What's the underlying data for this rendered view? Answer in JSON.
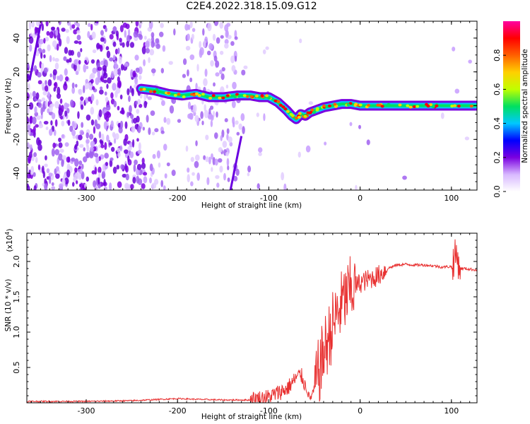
{
  "title": "C2E4.2022.318.15.09.G12",
  "chart_data": [
    {
      "type": "heatmap",
      "xlabel": "Height of straight line (km)",
      "ylabel": "Frequency (Hz)",
      "xlim": [
        -365,
        128
      ],
      "ylim": [
        -50,
        50
      ],
      "x_ticks": [
        -300,
        -200,
        -100,
        0,
        100
      ],
      "y_ticks": [
        -40,
        -20,
        0,
        20,
        40
      ],
      "grid": false,
      "colorbar": {
        "label": "Normalized spectral amplitude",
        "range": [
          0.0,
          1.0
        ],
        "ticks": [
          "0.0",
          "0.2",
          "0.4",
          "0.6",
          "0.8"
        ],
        "colors": [
          "#ffffff",
          "#d8b8ff",
          "#7a00e0",
          "#0000ff",
          "#00c8ff",
          "#00e060",
          "#c0ff00",
          "#ffd000",
          "#ff6000",
          "#ff0000",
          "#ff00a0"
        ]
      },
      "signal_track": {
        "x": [
          -240,
          -225,
          -210,
          -195,
          -180,
          -165,
          -150,
          -135,
          -120,
          -110,
          -100,
          -90,
          -80,
          -75,
          -70,
          -65,
          -60,
          -55,
          -50,
          -40,
          -30,
          -20,
          -10,
          0,
          20,
          40,
          60,
          80,
          100,
          128
        ],
        "y": [
          10,
          9,
          7,
          6,
          7,
          5,
          5,
          6,
          6,
          5,
          5,
          2,
          -3,
          -6,
          -8,
          -5,
          -6,
          -4,
          -3,
          -1,
          0,
          1,
          1,
          0,
          0,
          0,
          0,
          0,
          0,
          0
        ]
      }
    },
    {
      "type": "line",
      "xlabel": "Height of straight line (km)",
      "ylabel": "SNR (10 * v/v)",
      "y_scale_note": "(x10",
      "y_scale_exp": "4",
      "y_scale_close": ")",
      "xlim": [
        -365,
        128
      ],
      "ylim": [
        0,
        2.4
      ],
      "x_ticks": [
        -300,
        -200,
        -100,
        0,
        100
      ],
      "y_ticks": [
        0.5,
        1.0,
        1.5,
        2.0
      ],
      "y_tick_labels": [
        "0.5",
        "1.0",
        "1.5",
        "2.0"
      ],
      "color": "#e83030",
      "grid": false,
      "series": [
        {
          "x": [
            -365,
            -300,
            -250,
            -200,
            -180,
            -150,
            -120,
            -100,
            -80,
            -70,
            -65,
            -60,
            -55,
            -50,
            -45,
            -40,
            -35,
            -30,
            -25,
            -20,
            -15,
            -10,
            -5,
            0,
            10,
            20,
            30,
            40,
            50,
            60,
            70,
            80,
            90,
            100,
            105,
            110,
            115,
            120,
            128
          ],
          "y": [
            0.02,
            0.02,
            0.03,
            0.06,
            0.05,
            0.04,
            0.04,
            0.08,
            0.2,
            0.35,
            0.4,
            0.25,
            0.05,
            0.2,
            0.45,
            0.7,
            0.9,
            1.1,
            1.25,
            1.4,
            1.5,
            1.6,
            1.65,
            1.7,
            1.75,
            1.8,
            1.9,
            1.95,
            1.96,
            1.95,
            1.95,
            1.94,
            1.92,
            1.93,
            2.1,
            1.9,
            1.9,
            1.89,
            1.88
          ]
        }
      ]
    }
  ]
}
